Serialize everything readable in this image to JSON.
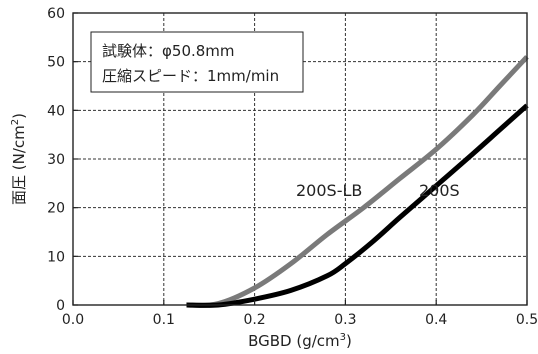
{
  "chart_data": {
    "type": "line",
    "title": "",
    "xlabel": "BGBD (g/cm",
    "xlabel_sup": "3",
    "xlabel_end": ")",
    "ylabel": "面圧 (N/cm",
    "ylabel_sup": "2",
    "ylabel_end": ")",
    "xlim": [
      0.0,
      0.5
    ],
    "ylim": [
      0,
      60
    ],
    "x_ticks": [
      0.0,
      0.1,
      0.2,
      0.3,
      0.4,
      0.5
    ],
    "x_tick_labels": [
      "0.0",
      "0.1",
      "0.2",
      "0.3",
      "0.4",
      "0.5"
    ],
    "y_ticks": [
      0,
      10,
      20,
      30,
      40,
      50,
      60
    ],
    "y_tick_labels": [
      "0",
      "10",
      "20",
      "30",
      "40",
      "50",
      "60"
    ],
    "grid": true,
    "annotation": {
      "line1": "試験体：φ50.8mm",
      "line2": "圧縮スピード：1mm/min"
    },
    "series": [
      {
        "name": "200S-LB",
        "color": "#7a7a7a",
        "x": [
          0.125,
          0.16,
          0.2,
          0.24,
          0.28,
          0.32,
          0.36,
          0.4,
          0.44,
          0.47,
          0.5
        ],
        "y": [
          0,
          0.3,
          3.5,
          8.5,
          14.5,
          20,
          26,
          32,
          39,
          45,
          51
        ]
      },
      {
        "name": "200S",
        "color": "#000000",
        "x": [
          0.125,
          0.16,
          0.2,
          0.24,
          0.28,
          0.3,
          0.33,
          0.36,
          0.4,
          0.44,
          0.47,
          0.5
        ],
        "y": [
          0,
          0,
          1.2,
          3,
          6,
          8.5,
          13,
          18,
          24.5,
          31,
          36,
          41
        ]
      }
    ]
  }
}
